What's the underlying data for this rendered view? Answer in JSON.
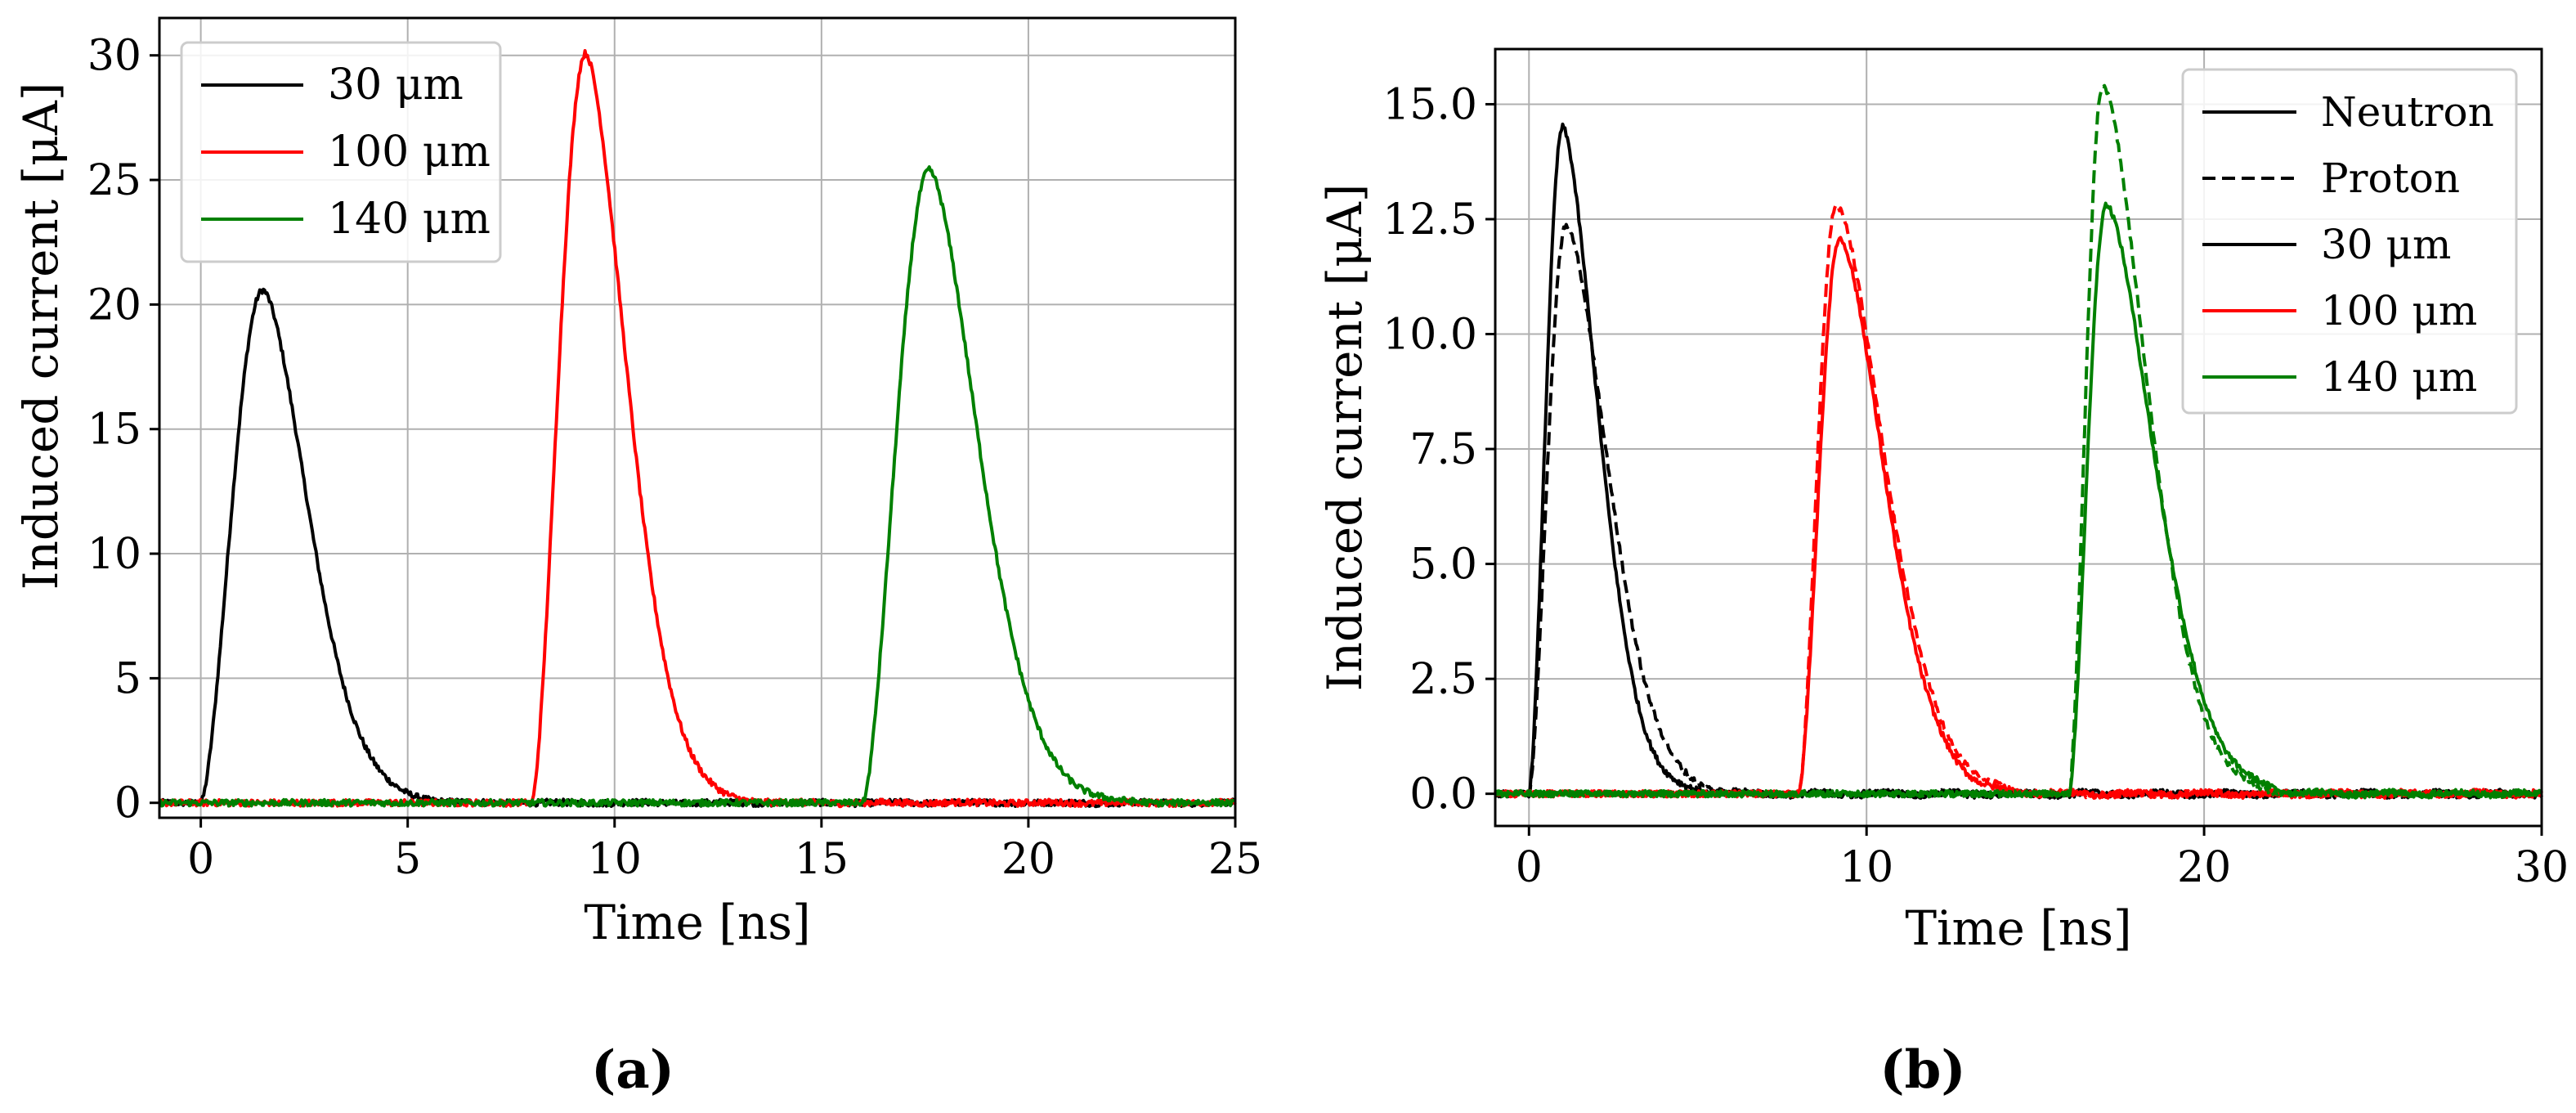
{
  "chart_data": [
    {
      "type": "line",
      "panel_label": "(a)",
      "xlabel": "Time [ns]",
      "ylabel": "Induced current [μA]",
      "xlim": [
        -1,
        25
      ],
      "ylim": [
        -0.6,
        31.5
      ],
      "xticks": [
        0,
        5,
        10,
        15,
        20,
        25
      ],
      "xtick_labels": [
        "0",
        "5",
        "10",
        "15",
        "20",
        "25"
      ],
      "yticks": [
        0,
        5,
        10,
        15,
        20,
        25,
        30
      ],
      "ytick_labels": [
        "0",
        "5",
        "10",
        "15",
        "20",
        "25",
        "30"
      ],
      "grid": true,
      "legend_position": "top-left",
      "legend": [
        {
          "label": "30 μm",
          "color": "#000000",
          "style": "solid"
        },
        {
          "label": "100 μm",
          "color": "#ff0000",
          "style": "solid"
        },
        {
          "label": "140 μm",
          "color": "#008000",
          "style": "solid"
        }
      ],
      "series": [
        {
          "name": "30 μm",
          "color": "#000000",
          "style": "solid",
          "t0": 0.0,
          "peak_time": 1.5,
          "peak": 20.6,
          "decay": 1.15,
          "tail": 0.02
        },
        {
          "name": "100 μm",
          "color": "#ff0000",
          "style": "solid",
          "t0": 8.0,
          "peak_time": 9.3,
          "peak": 30.1,
          "decay": 1.05,
          "tail": 0.02
        },
        {
          "name": "140 μm",
          "color": "#008000",
          "style": "solid",
          "t0": 16.0,
          "peak_time": 17.6,
          "peak": 25.4,
          "decay": 1.25,
          "tail": 0.02
        }
      ]
    },
    {
      "type": "line",
      "panel_label": "(b)",
      "xlabel": "Time [ns]",
      "ylabel": "Induced current [μA]",
      "xlim": [
        -1,
        30
      ],
      "ylim": [
        -0.7,
        16.2
      ],
      "xticks": [
        0,
        10,
        20,
        30
      ],
      "xtick_labels": [
        "0",
        "10",
        "20",
        "30"
      ],
      "yticks": [
        0,
        2.5,
        5,
        7.5,
        10,
        12.5,
        15
      ],
      "ytick_labels": [
        "0.0",
        "2.5",
        "5.0",
        "7.5",
        "10.0",
        "12.5",
        "15.0"
      ],
      "grid": true,
      "legend_position": "top-right",
      "legend": [
        {
          "label": "Neutron",
          "color": "#000000",
          "style": "solid"
        },
        {
          "label": "Proton",
          "color": "#000000",
          "style": "dashed"
        },
        {
          "label": "30 μm",
          "color": "#000000",
          "style": "solid"
        },
        {
          "label": "100 μm",
          "color": "#ff0000",
          "style": "solid"
        },
        {
          "label": "140 μm",
          "color": "#008000",
          "style": "solid"
        }
      ],
      "series": [
        {
          "name": "30 μm Neutron",
          "color": "#000000",
          "style": "solid",
          "t0": 0.0,
          "peak_time": 1.0,
          "peak": 14.5,
          "decay": 1.1,
          "tail": 0.03
        },
        {
          "name": "30 μm Proton",
          "color": "#000000",
          "style": "dashed",
          "t0": 0.0,
          "peak_time": 1.1,
          "peak": 12.4,
          "decay": 1.3,
          "tail": 0.03
        },
        {
          "name": "100 μm Neutron",
          "color": "#ff0000",
          "style": "solid",
          "t0": 8.0,
          "peak_time": 9.2,
          "peak": 12.1,
          "decay": 1.4,
          "tail": 0.03
        },
        {
          "name": "100 μm Proton",
          "color": "#ff0000",
          "style": "dashed",
          "t0": 8.0,
          "peak_time": 9.1,
          "peak": 12.8,
          "decay": 1.5,
          "tail": 0.03
        },
        {
          "name": "140 μm Neutron",
          "color": "#008000",
          "style": "solid",
          "t0": 16.0,
          "peak_time": 17.1,
          "peak": 12.8,
          "decay": 1.5,
          "tail": 0.03
        },
        {
          "name": "140 μm Proton",
          "color": "#008000",
          "style": "dashed",
          "t0": 16.0,
          "peak_time": 17.0,
          "peak": 15.4,
          "decay": 1.4,
          "tail": 0.03
        }
      ]
    }
  ]
}
